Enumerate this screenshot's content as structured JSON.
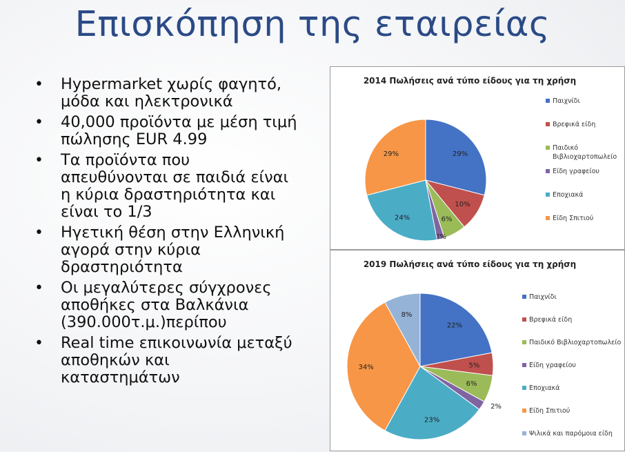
{
  "slide": {
    "title": "Επισκόπηση της εταιρείας",
    "bullets": [
      [
        "Hypermarket χωρίς φαγητό,",
        "μόδα και ηλεκτρονικά"
      ],
      [
        "40,000 προϊόντα με μέση τιμή",
        "πώλησης EUR 4.99"
      ],
      [
        "Τα προϊόντα που",
        "απευθύνονται σε παιδιά είναι",
        "η κύρια δραστηριότητα και",
        "είναι το 1/3"
      ],
      [
        "Ηγετική θέση στην Ελληνική",
        "αγορά στην κύρια",
        "δραστηριότητα"
      ],
      [
        "Οι μεγαλύτερες σύγχρονες",
        "αποθήκες στα Βαλκάνια",
        "(390.000τ.μ.)περίπου"
      ],
      [
        "Real time επικοινωνία μεταξύ",
        "αποθηκών και",
        "καταστημάτων"
      ]
    ],
    "bullet_symbol": "•"
  },
  "chart_data": [
    {
      "type": "pie",
      "title": "2014 Πωλήσεις ανά τύπο είδους για τη χρήση",
      "legend_position": "right",
      "slices": [
        {
          "label": "Παιχνίδι",
          "value": 29,
          "display": "29%",
          "color": "#4472c4"
        },
        {
          "label": "Βρεφικά είδη",
          "value": 10,
          "display": "10%",
          "color": "#c0504d"
        },
        {
          "label": "Παιδικό Βιβλιοχαρτοπωλείο",
          "legend_lines": [
            "Παιδικό",
            "Βιβλιοχαρτοπωλείο"
          ],
          "value": 6,
          "display": "6%",
          "color": "#9bbb59"
        },
        {
          "label": "Είδη γραφείου",
          "value": 2,
          "display": "2%",
          "color": "#8064a2"
        },
        {
          "label": "Εποχιακά",
          "value": 24,
          "display": "24%",
          "color": "#4bacc6"
        },
        {
          "label": "Είδη Σπιτιού",
          "value": 29,
          "display": "29%",
          "color": "#f79646"
        }
      ]
    },
    {
      "type": "pie",
      "title": "2019 Πωλήσεις ανά τύπο είδους για τη χρήση",
      "legend_position": "right",
      "slices": [
        {
          "label": "Παιχνίδι",
          "value": 22,
          "display": "22%",
          "color": "#4472c4"
        },
        {
          "label": "Βρεφικά είδη",
          "value": 5,
          "display": "5%",
          "color": "#c0504d"
        },
        {
          "label": "Παιδικό Βιβλιοχαρτοπωλείο",
          "value": 6,
          "display": "6%",
          "color": "#9bbb59"
        },
        {
          "label": "Είδη γραφείου",
          "value": 2,
          "display": "2%",
          "color": "#8064a2"
        },
        {
          "label": "Εποχιακά",
          "value": 23,
          "display": "23%",
          "color": "#4bacc6"
        },
        {
          "label": "Είδη Σπιτιού",
          "value": 34,
          "display": "34%",
          "color": "#f79646"
        },
        {
          "label": "Ψιλικά και παρόμοια είδη",
          "value": 8,
          "display": "8%",
          "color": "#95b3d7"
        }
      ]
    }
  ]
}
